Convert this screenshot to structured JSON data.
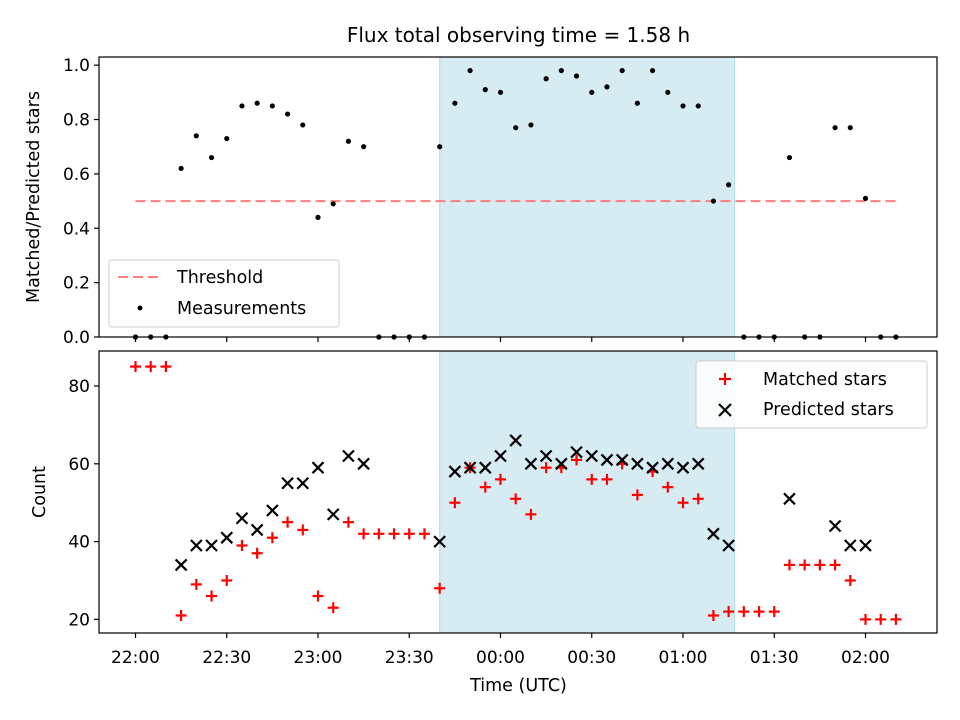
{
  "chart_data": {
    "type": "scatter",
    "title": "Flux total observing time = 1.58 h",
    "xlabel": "Time (UTC)",
    "x_tick_labels": [
      "22:00",
      "22:30",
      "23:00",
      "23:30",
      "00:00",
      "00:30",
      "01:00",
      "01:30",
      "02:00"
    ],
    "times": [
      "22:00",
      "22:05",
      "22:10",
      "22:15",
      "22:20",
      "22:25",
      "22:30",
      "22:35",
      "22:40",
      "22:45",
      "22:50",
      "22:55",
      "23:00",
      "23:05",
      "23:10",
      "23:15",
      "23:20",
      "23:25",
      "23:30",
      "23:35",
      "23:40",
      "23:45",
      "23:50",
      "23:55",
      "00:00",
      "00:05",
      "00:10",
      "00:15",
      "00:20",
      "00:25",
      "00:30",
      "00:35",
      "00:40",
      "00:45",
      "00:50",
      "00:55",
      "01:00",
      "01:05",
      "01:10",
      "01:15",
      "01:20",
      "01:25",
      "01:30",
      "01:35",
      "01:40",
      "01:45",
      "01:50",
      "01:55",
      "02:00",
      "02:05",
      "02:10"
    ],
    "highlight_span": [
      "23:40",
      "01:17"
    ],
    "top": {
      "ylabel": "Matched/Predicted stars",
      "ylim": [
        0,
        1.03
      ],
      "y_ticks": [
        "0.0",
        "0.2",
        "0.4",
        "0.6",
        "0.8",
        "1.0"
      ],
      "threshold": {
        "name": "Threshold",
        "value": 0.5,
        "x_range": [
          "22:00",
          "02:10"
        ]
      },
      "measurements": {
        "name": "Measurements",
        "values": [
          0,
          0,
          0,
          0.62,
          0.74,
          0.66,
          0.73,
          0.85,
          0.86,
          0.85,
          0.82,
          0.78,
          0.44,
          0.49,
          0.72,
          0.7,
          0,
          0,
          0,
          0,
          0.7,
          0.86,
          0.98,
          0.91,
          0.9,
          0.77,
          0.78,
          0.95,
          0.98,
          0.96,
          0.9,
          0.92,
          0.98,
          0.86,
          0.98,
          0.9,
          0.85,
          0.85,
          0.5,
          0.56,
          0,
          0,
          0,
          0.66,
          0,
          0,
          0.77,
          0.77,
          0.51,
          0,
          0
        ]
      }
    },
    "bottom": {
      "ylabel": "Count",
      "ylim": [
        16.5,
        89
      ],
      "y_ticks": [
        "20",
        "40",
        "60",
        "80"
      ],
      "matched": {
        "name": "Matched stars",
        "values": [
          85,
          85,
          85,
          21,
          29,
          26,
          30,
          39,
          37,
          41,
          45,
          43,
          26,
          23,
          45,
          42,
          42,
          42,
          42,
          42,
          28,
          50,
          59,
          54,
          56,
          51,
          47,
          59,
          59,
          61,
          56,
          56,
          60,
          52,
          58,
          54,
          50,
          51,
          21,
          22,
          22,
          22,
          22,
          34,
          34,
          34,
          34,
          30,
          20,
          20,
          20
        ]
      },
      "predicted": {
        "name": "Predicted stars",
        "values": [
          null,
          null,
          null,
          34,
          39,
          39,
          41,
          46,
          43,
          48,
          55,
          55,
          59,
          47,
          62,
          60,
          null,
          null,
          null,
          null,
          40,
          58,
          59,
          59,
          62,
          66,
          60,
          62,
          60,
          63,
          62,
          61,
          61,
          60,
          59,
          60,
          59,
          60,
          42,
          39,
          null,
          null,
          null,
          51,
          null,
          null,
          44,
          39,
          39,
          null,
          null
        ]
      }
    }
  }
}
